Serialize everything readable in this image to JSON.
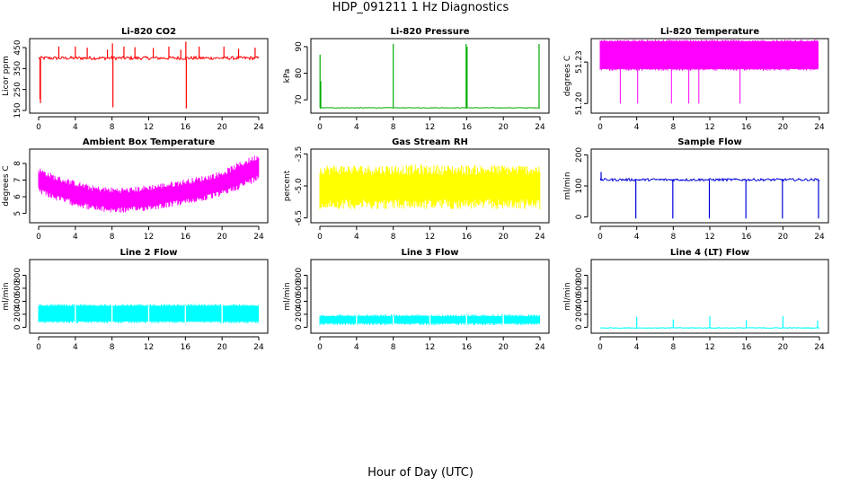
{
  "figure": {
    "title": "HDP_091211  1 Hz Diagnostics",
    "xlabel": "Hour of Day (UTC)"
  },
  "chart_data": [
    {
      "type": "line",
      "title": "Li-820 CO2",
      "ylabel": "Licor ppm",
      "color": "#ff0000",
      "xlim": [
        0,
        24
      ],
      "xticks": [
        0,
        4,
        8,
        12,
        16,
        20,
        24
      ],
      "ylim": [
        150,
        480
      ],
      "yticks": [
        150,
        250,
        350,
        450
      ],
      "ytick_labels": [
        "150",
        "250",
        "350",
        "450"
      ],
      "baseline": 400,
      "noise": 8,
      "spikes": [
        {
          "x": 0.15,
          "to": 205
        },
        {
          "x": 0.2,
          "to": 185
        },
        {
          "x": 2.2,
          "to": 455
        },
        {
          "x": 4,
          "to": 455
        },
        {
          "x": 5.3,
          "to": 450
        },
        {
          "x": 7.5,
          "to": 440
        },
        {
          "x": 8.05,
          "to": 470
        },
        {
          "x": 8.1,
          "to": 165
        },
        {
          "x": 9.3,
          "to": 455
        },
        {
          "x": 10.5,
          "to": 452
        },
        {
          "x": 12.5,
          "to": 448
        },
        {
          "x": 14.2,
          "to": 455
        },
        {
          "x": 15.5,
          "to": 440
        },
        {
          "x": 16.05,
          "to": 478
        },
        {
          "x": 16.1,
          "to": 160
        },
        {
          "x": 17.5,
          "to": 455
        },
        {
          "x": 20.2,
          "to": 455
        },
        {
          "x": 21.8,
          "to": 445
        },
        {
          "x": 23.6,
          "to": 450
        }
      ]
    },
    {
      "type": "line",
      "title": "Li-820 Pressure",
      "ylabel": "kPa",
      "color": "#00aa00",
      "xlim": [
        0,
        24
      ],
      "xticks": [
        0,
        4,
        8,
        12,
        16,
        20,
        24
      ],
      "ylim": [
        66,
        92
      ],
      "yticks": [
        70,
        80,
        90
      ],
      "ytick_labels": [
        "70",
        "80",
        "90"
      ],
      "baseline": 67,
      "noise": 0.1,
      "spikes": [
        {
          "x": 0.02,
          "to": 87
        },
        {
          "x": 0.1,
          "to": 77
        },
        {
          "x": 8.0,
          "to": 91
        },
        {
          "x": 15.95,
          "to": 91
        },
        {
          "x": 16.05,
          "to": 90
        },
        {
          "x": 23.9,
          "to": 91
        }
      ]
    },
    {
      "type": "band",
      "title": "Li-820 Temperature",
      "ylabel": "degrees C",
      "color": "#ff00ff",
      "xlim": [
        0,
        24
      ],
      "xticks": [
        0,
        4,
        8,
        12,
        16,
        20,
        24
      ],
      "ylim": [
        51.195,
        51.245
      ],
      "yticks": [
        51.2,
        51.23
      ],
      "ytick_labels": [
        "51.20",
        "51.23"
      ],
      "band": [
        51.225,
        51.245
      ],
      "band_x": [
        0,
        23.9
      ],
      "drops": [
        {
          "x": 2.2,
          "to": 51.2
        },
        {
          "x": 4.1,
          "to": 51.2
        },
        {
          "x": 7.8,
          "to": 51.2
        },
        {
          "x": 9.7,
          "to": 51.2
        },
        {
          "x": 10.8,
          "to": 51.2
        },
        {
          "x": 15.3,
          "to": 51.2
        },
        {
          "x": 23.5,
          "to": 51.225
        },
        {
          "x": 23.8,
          "to": 51.225
        }
      ]
    },
    {
      "type": "band",
      "title": "Ambient Box Temperature",
      "ylabel": "degrees C",
      "color": "#ff00ff",
      "xlim": [
        0,
        24
      ],
      "xticks": [
        0,
        4,
        8,
        12,
        16,
        20,
        24
      ],
      "ylim": [
        4.6,
        8.7
      ],
      "yticks": [
        5,
        6,
        7,
        8
      ],
      "ytick_labels": [
        "5",
        "6",
        "7",
        "8"
      ],
      "profile": [
        {
          "x": 0,
          "mid": 7.0,
          "amp": 0.7
        },
        {
          "x": 2,
          "mid": 6.5,
          "amp": 0.7
        },
        {
          "x": 4,
          "mid": 6.2,
          "amp": 0.7
        },
        {
          "x": 6,
          "mid": 5.9,
          "amp": 0.7
        },
        {
          "x": 8,
          "mid": 5.8,
          "amp": 0.7
        },
        {
          "x": 10,
          "mid": 5.8,
          "amp": 0.7
        },
        {
          "x": 12,
          "mid": 5.95,
          "amp": 0.7
        },
        {
          "x": 14,
          "mid": 6.1,
          "amp": 0.7
        },
        {
          "x": 16,
          "mid": 6.3,
          "amp": 0.7
        },
        {
          "x": 18,
          "mid": 6.5,
          "amp": 0.7
        },
        {
          "x": 20,
          "mid": 6.8,
          "amp": 0.7
        },
        {
          "x": 22,
          "mid": 7.3,
          "amp": 0.75
        },
        {
          "x": 24,
          "mid": 7.8,
          "amp": 0.75
        }
      ]
    },
    {
      "type": "band",
      "title": "Gas Stream RH",
      "ylabel": "percent",
      "color": "#ffff00",
      "xlim": [
        0,
        24
      ],
      "xticks": [
        0,
        4,
        8,
        12,
        16,
        20,
        24
      ],
      "ylim": [
        -6.6,
        -3.4
      ],
      "yticks": [
        -6.5,
        -5.0,
        -3.5
      ],
      "ytick_labels": [
        "-6.5",
        "-5.0",
        "-3.5"
      ],
      "profile": [
        {
          "x": 0,
          "mid": -5.05,
          "amp": 0.95
        },
        {
          "x": 12,
          "mid": -5.05,
          "amp": 0.95
        },
        {
          "x": 24,
          "mid": -5.05,
          "amp": 0.95
        }
      ]
    },
    {
      "type": "line",
      "title": "Sample Flow",
      "ylabel": "ml/min",
      "color": "#0000dd",
      "xlim": [
        0,
        24
      ],
      "xticks": [
        0,
        4,
        8,
        12,
        16,
        20,
        24
      ],
      "ylim": [
        -10,
        210
      ],
      "yticks": [
        0,
        100,
        200
      ],
      "ytick_labels": [
        "0",
        "100",
        "200"
      ],
      "baseline": 120,
      "noise": 4,
      "spikes": [
        {
          "x": 0.1,
          "to": 145
        },
        {
          "x": 3.9,
          "to": -5
        },
        {
          "x": 7.95,
          "to": -5
        },
        {
          "x": 11.95,
          "to": -5
        },
        {
          "x": 15.95,
          "to": -5
        },
        {
          "x": 19.95,
          "to": -5
        },
        {
          "x": 23.9,
          "to": -5
        }
      ]
    },
    {
      "type": "band",
      "title": "Line 2 Flow",
      "ylabel": "ml/min",
      "color": "#00ffff",
      "xlim": [
        0,
        24
      ],
      "xticks": [
        0,
        4,
        8,
        12,
        16,
        20,
        24
      ],
      "ylim": [
        -50,
        1000
      ],
      "yticks": [
        0,
        200,
        400,
        600,
        800
      ],
      "ytick_labels": [
        "0",
        "200",
        "400",
        "600",
        "800"
      ],
      "band": [
        90,
        330
      ],
      "band_x": [
        0,
        24
      ],
      "gaps": [
        4,
        8,
        12,
        16,
        20
      ]
    },
    {
      "type": "band",
      "title": "Line 3 Flow",
      "ylabel": "ml/min",
      "color": "#00ffff",
      "xlim": [
        0,
        24
      ],
      "xticks": [
        0,
        4,
        8,
        12,
        16,
        20,
        24
      ],
      "ylim": [
        -50,
        1000
      ],
      "yticks": [
        0,
        200,
        400,
        600,
        800
      ],
      "ytick_labels": [
        "0",
        "200",
        "400",
        "600",
        "800"
      ],
      "band": [
        60,
        170
      ],
      "band_x": [
        0,
        24
      ],
      "gaps": [
        4,
        8,
        12,
        16,
        20
      ]
    },
    {
      "type": "line",
      "title": "Line 4 (LT) Flow",
      "ylabel": "ml/min",
      "color": "#00ffff",
      "xlim": [
        0,
        24
      ],
      "xticks": [
        0,
        4,
        8,
        12,
        16,
        20,
        24
      ],
      "ylim": [
        -50,
        1000
      ],
      "yticks": [
        0,
        200,
        400,
        600,
        800
      ],
      "ytick_labels": [
        "0",
        "200",
        "400",
        "600",
        "800"
      ],
      "baseline": -10,
      "noise": 6,
      "spikes": [
        {
          "x": 4,
          "to": 160
        },
        {
          "x": 8,
          "to": 120
        },
        {
          "x": 12,
          "to": 170
        },
        {
          "x": 16,
          "to": 110
        },
        {
          "x": 20,
          "to": 170
        },
        {
          "x": 23.8,
          "to": 100
        }
      ]
    }
  ]
}
